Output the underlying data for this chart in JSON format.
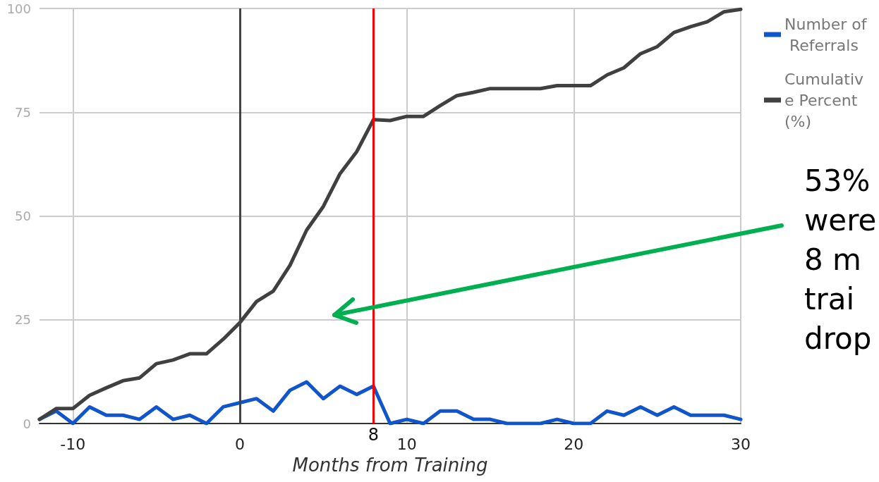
{
  "chart_data": {
    "type": "line",
    "xlabel": "Months from Training",
    "x": [
      -12,
      -11,
      -10,
      -9,
      -8,
      -7,
      -6,
      -5,
      -4,
      -3,
      -2,
      -1,
      0,
      1,
      2,
      3,
      4,
      5,
      6,
      7,
      8,
      9,
      10,
      11,
      12,
      13,
      14,
      15,
      16,
      17,
      18,
      19,
      20,
      21,
      22,
      23,
      24,
      25,
      26,
      27,
      28,
      29,
      30
    ],
    "series": [
      {
        "name": "Number of Referrals",
        "color": "#1155cc",
        "values": [
          1,
          3,
          0,
          4,
          2,
          2,
          1,
          4,
          1,
          2,
          0,
          4,
          5,
          6,
          3,
          8,
          10,
          6,
          9,
          7,
          9,
          0,
          1,
          0,
          3,
          3,
          1,
          1,
          0,
          0,
          0,
          1,
          0,
          0,
          3,
          2,
          4,
          2,
          4,
          2,
          2,
          2,
          1
        ]
      },
      {
        "name": "Cumulative Percent (%)",
        "color": "#404040",
        "values": [
          1,
          3.6,
          3.6,
          6.8,
          8.6,
          10.3,
          11,
          14.4,
          15.3,
          16.8,
          16.8,
          20.3,
          24.3,
          29.4,
          31.9,
          38.1,
          46.6,
          52.3,
          60.2,
          65.5,
          73.2,
          73,
          74,
          74,
          76.6,
          79,
          79.8,
          80.7,
          80.7,
          80.7,
          80.7,
          81.4,
          81.4,
          81.4,
          84,
          85.7,
          89.1,
          90.8,
          94.2,
          95.6,
          96.8,
          99.2,
          99.8
        ]
      }
    ],
    "xlim": [
      -12,
      30
    ],
    "xticks": [
      -10,
      0,
      10,
      20,
      30
    ],
    "ylim": [
      0,
      100
    ],
    "yticks": [
      0,
      25,
      50,
      75,
      100
    ],
    "ref_lines": [
      {
        "axis": "x",
        "value": 0,
        "color": "#444444"
      },
      {
        "axis": "x",
        "value": 8,
        "label": "8",
        "color": "#ff0000"
      }
    ],
    "annotations": [
      "53%\nwere\n8 m\ntrai\ndrop"
    ],
    "grid": true,
    "legend": "top right",
    "marker": "none",
    "line_style": "solid"
  }
}
